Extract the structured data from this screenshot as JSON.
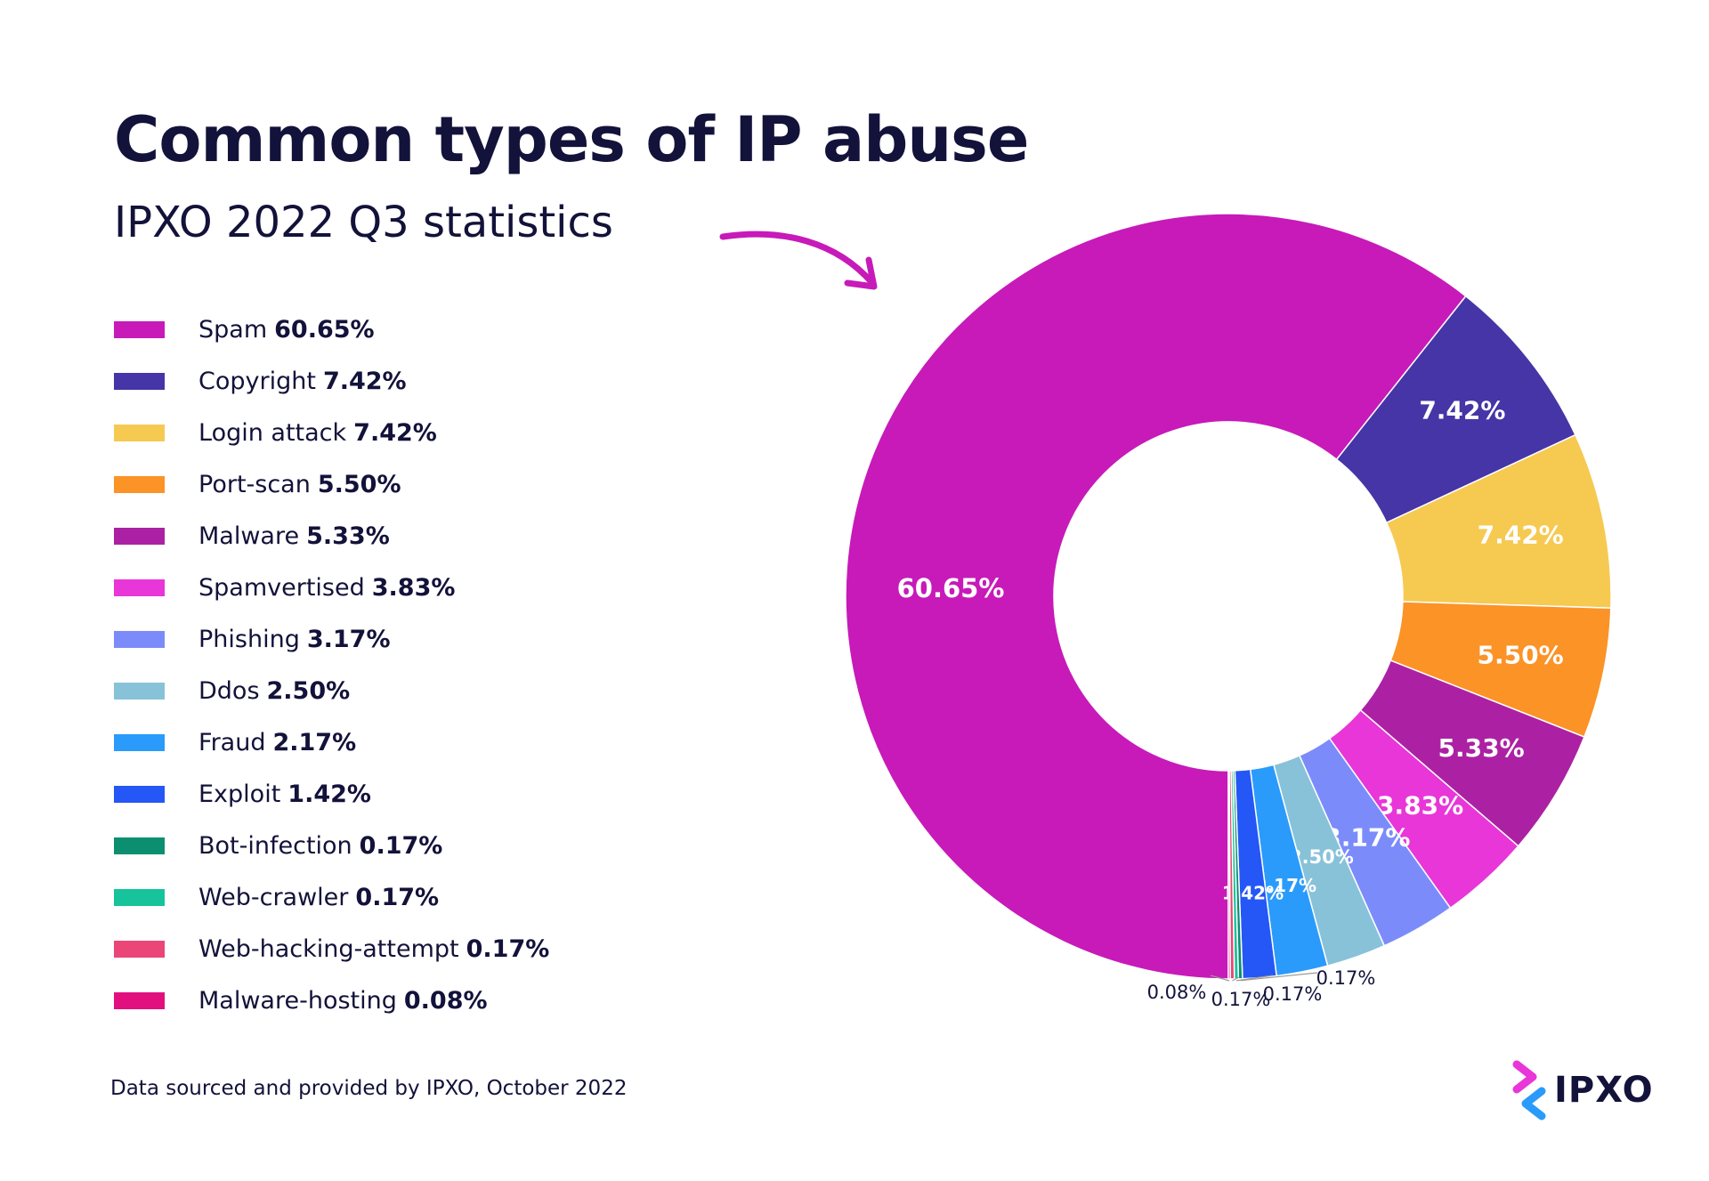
{
  "title": "Common types of IP abuse",
  "subtitle": "IPXO 2022 Q3 statistics",
  "footer": "Data sourced and provided by IPXO, October 2022",
  "brand": {
    "name": "IPXO",
    "icon": "ipxo-logo-icon"
  },
  "chart_data": {
    "type": "pie",
    "variant": "donut",
    "title": "Common types of IP abuse",
    "subtitle": "IPXO 2022 Q3 statistics",
    "categories": [
      "Spam",
      "Copyright",
      "Login attack",
      "Port-scan",
      "Malware",
      "Spamvertised",
      "Phishing",
      "Ddos",
      "Fraud",
      "Exploit",
      "Bot-infection",
      "Web-crawler",
      "Web-hacking-attempt",
      "Malware-hosting"
    ],
    "values": [
      60.65,
      7.42,
      7.42,
      5.5,
      5.33,
      3.83,
      3.17,
      2.5,
      2.17,
      1.42,
      0.17,
      0.17,
      0.17,
      0.08
    ],
    "labels": [
      "60.65%",
      "7.42%",
      "7.42%",
      "5.50%",
      "5.33%",
      "3.83%",
      "3.17%",
      "2.50%",
      "2.17%",
      "1.42%",
      "0.17%",
      "0.17%",
      "0.17%",
      "0.08%"
    ],
    "colors": [
      "#c71ab9",
      "#4535a6",
      "#f6c951",
      "#fb9327",
      "#ac21a3",
      "#e836d8",
      "#7b8cfa",
      "#88c2d9",
      "#2a9bfb",
      "#2457f5",
      "#0c8f71",
      "#16c39a",
      "#ea4677",
      "#e2107e"
    ],
    "legend_position": "left",
    "unit": "%"
  }
}
